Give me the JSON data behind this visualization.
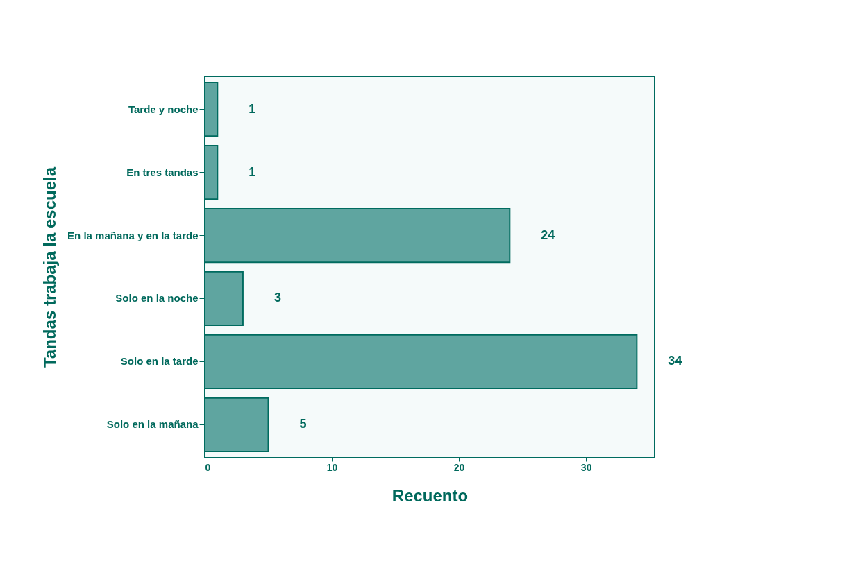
{
  "chart_data": {
    "type": "bar",
    "orientation": "horizontal",
    "ylabel": "Tandas trabaja la escuela",
    "xlabel": "Recuento",
    "categories": [
      "Tarde y noche",
      "En tres tandas",
      "En la mañana y en la tarde",
      "Solo en la noche",
      "Solo en la tarde",
      "Solo en la mañana"
    ],
    "values": [
      1,
      1,
      24,
      3,
      34,
      5
    ],
    "color": "#5fa5a0",
    "xlim": [
      0,
      35.4
    ],
    "xticks": [
      0,
      10,
      20,
      30
    ],
    "data_labels": true,
    "grid": false
  }
}
